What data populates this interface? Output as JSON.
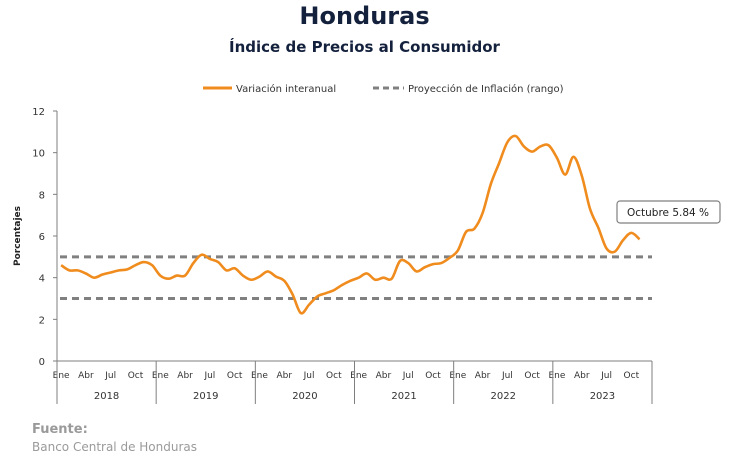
{
  "chart_data": {
    "type": "line",
    "title": "Honduras",
    "subtitle": "Índice de Precios al Consumidor",
    "ylabel": "Porcentajes",
    "ylim": [
      0,
      12
    ],
    "yticks": [
      0,
      2,
      4,
      6,
      8,
      10,
      12
    ],
    "month_ticks": [
      "Ene",
      "Abr",
      "Jul",
      "Oct"
    ],
    "years": [
      "2018",
      "2019",
      "2020",
      "2021",
      "2022",
      "2023"
    ],
    "legend": {
      "placement": "top",
      "line_label": "Variación interanual",
      "band_label": "Proyección de Inflación (rango)"
    },
    "series": [
      {
        "name": "Variación interanual",
        "color": "#f08c1e",
        "values": [
          4.6,
          4.35,
          4.35,
          4.2,
          4.0,
          4.15,
          4.25,
          4.35,
          4.4,
          4.6,
          4.75,
          4.6,
          4.1,
          3.95,
          4.1,
          4.1,
          4.7,
          5.1,
          4.9,
          4.75,
          4.35,
          4.45,
          4.1,
          3.9,
          4.05,
          4.3,
          4.05,
          3.85,
          3.2,
          2.3,
          2.7,
          3.1,
          3.25,
          3.4,
          3.65,
          3.85,
          4.0,
          4.2,
          3.9,
          4.0,
          3.95,
          4.8,
          4.7,
          4.3,
          4.5,
          4.65,
          4.7,
          4.95,
          5.3,
          6.2,
          6.35,
          7.1,
          8.5,
          9.5,
          10.5,
          10.8,
          10.3,
          10.05,
          10.3,
          10.35,
          9.75,
          8.95,
          9.8,
          8.9,
          7.3,
          6.4,
          5.4,
          5.25,
          5.8,
          6.15,
          5.84
        ]
      }
    ],
    "projection_band": [
      3,
      5
    ],
    "annotation": "Octubre 5.84 %"
  },
  "source": {
    "label": "Fuente:",
    "text": "Banco Central de Honduras"
  },
  "colors": {
    "title": "#14213d",
    "line": "#f08c1e",
    "band": "#808080",
    "axis": "#7f7f7f"
  }
}
